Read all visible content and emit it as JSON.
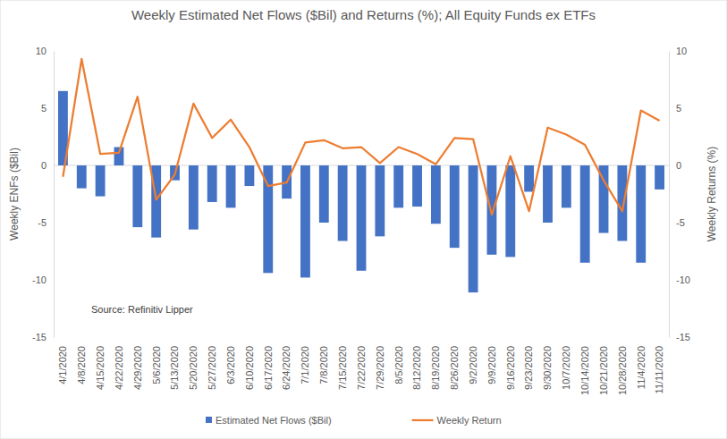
{
  "chart_data": {
    "type": "bar",
    "title": "Weekly Estimated Net Flows ($Bil) and Returns (%); All Equity Funds ex ETFs",
    "y_label": "Weekly ENFs ($Bil)",
    "y2_label": "Weekly Returns (%)",
    "annotation": "Source: Refinitiv Lipper",
    "categories": [
      "4/1/2020",
      "4/8/2020",
      "4/15/2020",
      "4/22/2020",
      "4/29/2020",
      "5/6/2020",
      "5/13/2020",
      "5/20/2020",
      "5/27/2020",
      "6/3/2020",
      "6/10/2020",
      "6/17/2020",
      "6/24/2020",
      "7/1/2020",
      "7/8/2020",
      "7/15/2020",
      "7/22/2020",
      "7/29/2020",
      "8/5/2020",
      "8/12/2020",
      "8/19/2020",
      "8/26/2020",
      "9/2/2020",
      "9/9/2020",
      "9/16/2020",
      "9/23/2020",
      "9/30/2020",
      "10/7/2020",
      "10/14/2020",
      "10/21/2020",
      "10/28/2020",
      "11/4/2020",
      "11/11/2020"
    ],
    "series": [
      {
        "name": "Estimated Net Flows ($Bil)",
        "type": "bar",
        "color": "#4472c4",
        "values": [
          6.5,
          -2.0,
          -2.7,
          1.6,
          -5.4,
          -6.3,
          -1.3,
          -5.6,
          -3.2,
          -3.7,
          -1.8,
          -9.4,
          -2.9,
          -9.8,
          -5.0,
          -6.6,
          -9.2,
          -6.2,
          -3.7,
          -3.6,
          -5.1,
          -7.2,
          -11.1,
          -7.8,
          -8.0,
          -2.3,
          -5.0,
          -3.7,
          -8.5,
          -5.9,
          -6.6,
          -8.5,
          -2.1
        ]
      },
      {
        "name": "Weekly Return",
        "type": "line",
        "axis": "y2",
        "color": "#ed7d31",
        "values": [
          -1.0,
          9.3,
          1.0,
          1.1,
          6.0,
          -3.0,
          -0.8,
          5.4,
          2.4,
          4.0,
          1.6,
          -1.8,
          -1.5,
          2.0,
          2.2,
          1.5,
          1.6,
          0.2,
          1.6,
          1.0,
          0.1,
          2.4,
          2.3,
          -4.3,
          0.8,
          -4.0,
          3.3,
          2.7,
          1.8,
          -1.3,
          -4.0,
          4.8,
          3.9
        ]
      }
    ],
    "ylim": [
      -15,
      10
    ],
    "yticks": [
      -15,
      -10,
      -5,
      0,
      5,
      10
    ],
    "y2lim": [
      -15,
      10
    ],
    "y2ticks": [
      -15,
      -10,
      -5,
      0,
      5,
      10
    ],
    "grid": false,
    "legend": "bottom"
  }
}
